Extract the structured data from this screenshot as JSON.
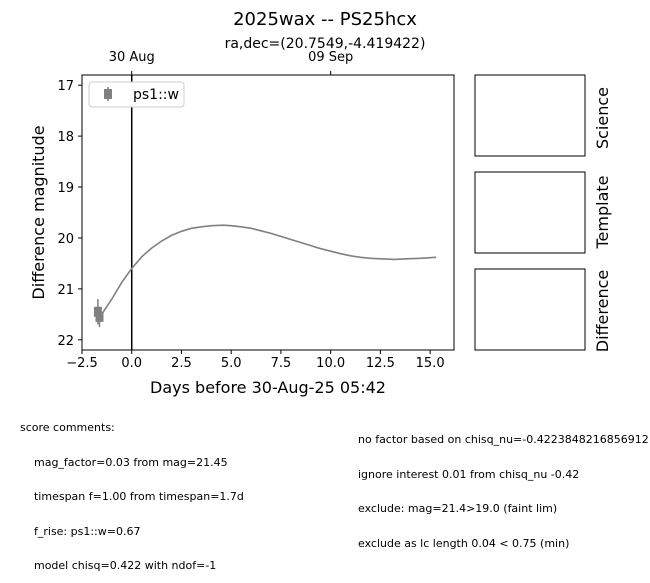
{
  "chart_data": {
    "type": "scatter",
    "title": "2025wax -- PS25hcx",
    "subtitle": "ra,dec=(20.7549,-4.419422)",
    "xlabel": "Days before 30-Aug-25 05:42",
    "ylabel": "Difference magnitude",
    "xlim": [
      -2.5,
      16.2
    ],
    "ylim": [
      22.2,
      16.8
    ],
    "y_inverted": true,
    "x_ticks": [
      -2.5,
      0.0,
      2.5,
      5.0,
      7.5,
      10.0,
      12.5,
      15.0
    ],
    "x_tick_labels": [
      "−2.5",
      "0.0",
      "2.5",
      "5.0",
      "7.5",
      "10.0",
      "12.5",
      "15.0"
    ],
    "y_ticks": [
      17,
      18,
      19,
      20,
      21,
      22
    ],
    "y_tick_labels": [
      "17",
      "18",
      "19",
      "20",
      "21",
      "22"
    ],
    "top_axis_ticks": [
      0,
      10
    ],
    "top_axis_labels": [
      "30 Aug",
      "09 Sep"
    ],
    "vertical_line_x": 0,
    "legend": {
      "label": "ps1::w",
      "position": "top-left"
    },
    "series": [
      {
        "name": "ps1::w",
        "kind": "points",
        "color": "#808080",
        "points": [
          {
            "x": -1.7,
            "y": 21.45,
            "yerr": 0.25
          },
          {
            "x": -1.62,
            "y": 21.55,
            "yerr": 0.2
          }
        ]
      },
      {
        "name": "model",
        "kind": "line",
        "color": "#808080",
        "points": [
          {
            "x": -1.6,
            "y": 21.55
          },
          {
            "x": -1.0,
            "y": 21.2
          },
          {
            "x": -0.5,
            "y": 20.87
          },
          {
            "x": 0.0,
            "y": 20.6
          },
          {
            "x": 0.5,
            "y": 20.37
          },
          {
            "x": 1.0,
            "y": 20.2
          },
          {
            "x": 1.5,
            "y": 20.06
          },
          {
            "x": 2.0,
            "y": 19.95
          },
          {
            "x": 2.5,
            "y": 19.87
          },
          {
            "x": 3.0,
            "y": 19.81
          },
          {
            "x": 3.5,
            "y": 19.78
          },
          {
            "x": 4.0,
            "y": 19.76
          },
          {
            "x": 4.6,
            "y": 19.75
          },
          {
            "x": 5.0,
            "y": 19.76
          },
          {
            "x": 5.5,
            "y": 19.78
          },
          {
            "x": 6.0,
            "y": 19.81
          },
          {
            "x": 6.5,
            "y": 19.86
          },
          {
            "x": 7.0,
            "y": 19.91
          },
          {
            "x": 7.5,
            "y": 19.97
          },
          {
            "x": 8.0,
            "y": 20.03
          },
          {
            "x": 8.5,
            "y": 20.09
          },
          {
            "x": 9.0,
            "y": 20.15
          },
          {
            "x": 9.5,
            "y": 20.21
          },
          {
            "x": 10.0,
            "y": 20.26
          },
          {
            "x": 10.5,
            "y": 20.31
          },
          {
            "x": 11.0,
            "y": 20.35
          },
          {
            "x": 11.5,
            "y": 20.38
          },
          {
            "x": 12.0,
            "y": 20.4
          },
          {
            "x": 12.5,
            "y": 20.41
          },
          {
            "x": 13.2,
            "y": 20.42
          },
          {
            "x": 13.8,
            "y": 20.41
          },
          {
            "x": 14.5,
            "y": 20.4
          },
          {
            "x": 15.3,
            "y": 20.38
          }
        ]
      }
    ]
  },
  "panels": [
    {
      "label": "Science"
    },
    {
      "label": "Template"
    },
    {
      "label": "Difference"
    }
  ],
  "comments": {
    "left": [
      "score comments:",
      "    mag_factor=0.03 from mag=21.45",
      "    timespan f=1.00 from timespan=1.7d",
      "    f_rise: ps1::w=0.67",
      "    model chisq=0.422 with ndof=-1"
    ],
    "right": [
      "no factor based on chisq_nu=-0.4223848216856912",
      "ignore interest 0.01 from chisq_nu -0.42",
      "exclude: mag=21.4>19.0 (faint lim)",
      "exclude as lc length 0.04 < 0.75 (min)"
    ]
  },
  "colors": {
    "series": "#808080",
    "axes": "#000000",
    "background": "#ffffff"
  }
}
